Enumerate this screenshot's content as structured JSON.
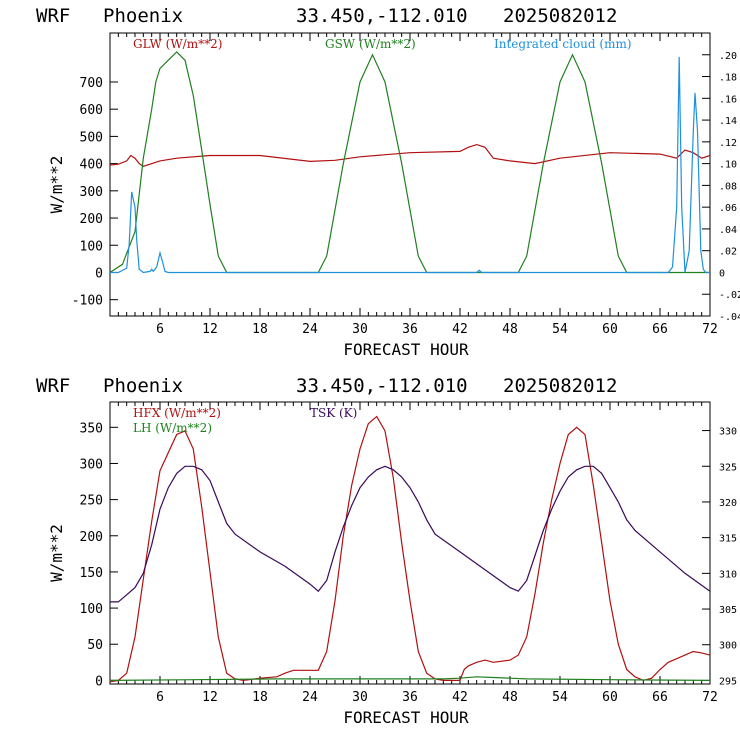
{
  "charts": [
    {
      "header": {
        "model": "WRF",
        "location": "Phoenix",
        "coords": "33.450,-112.010",
        "run": "2025082012"
      },
      "ylabel": "W/m**2",
      "xlabel": "FORECAST HOUR",
      "legend": [
        {
          "label": "GLW (W/m**2)",
          "color": "#b01010"
        },
        {
          "label": "GSW (W/m**2)",
          "color": "#208020"
        },
        {
          "label": "Integrated cloud (mm)",
          "color": "#1e90dd"
        }
      ]
    },
    {
      "header": {
        "model": "WRF",
        "location": "Phoenix",
        "coords": "33.450,-112.010",
        "run": "2025082012"
      },
      "ylabel": "W/m**2",
      "xlabel": "FORECAST HOUR",
      "legend": [
        {
          "label": "HFX (W/m**2)",
          "color": "#b01010"
        },
        {
          "label": "LH  (W/m**2)",
          "color": "#208020"
        },
        {
          "label": "TSK (K)",
          "color": "#3a0a5a"
        }
      ]
    }
  ],
  "chart_data": [
    {
      "type": "line",
      "xlim": [
        0,
        72
      ],
      "ylim": [
        -160,
        880
      ],
      "y2lim": [
        -0.04,
        0.22
      ],
      "xticks": [
        6,
        12,
        18,
        24,
        30,
        36,
        42,
        48,
        54,
        60,
        66,
        72
      ],
      "yticks": [
        -100,
        0,
        100,
        200,
        300,
        400,
        500,
        600,
        700
      ],
      "y2ticks": [
        -0.04,
        -0.02,
        0,
        0.02,
        0.04,
        0.06,
        0.08,
        0.1,
        0.12,
        0.14,
        0.16,
        0.18,
        0.2
      ],
      "y2ticklabels": [
        "-.04",
        "-.02",
        "0",
        ".02",
        ".04",
        ".06",
        ".08",
        ".10",
        ".12",
        ".14",
        ".16",
        ".18",
        ".20"
      ],
      "series": [
        {
          "name": "GLW (W/m**2)",
          "axis": "left",
          "color": "#b01010",
          "x": [
            0,
            1,
            2,
            2.5,
            3,
            3.5,
            4,
            6,
            8,
            12,
            18,
            24,
            27,
            30,
            36,
            42,
            43,
            44,
            45,
            46,
            48,
            51,
            54,
            60,
            66,
            68,
            69,
            70,
            71,
            72
          ],
          "y": [
            395,
            398,
            410,
            430,
            420,
            400,
            390,
            410,
            420,
            430,
            430,
            408,
            412,
            425,
            440,
            445,
            460,
            470,
            460,
            420,
            410,
            400,
            420,
            440,
            435,
            420,
            450,
            440,
            420,
            430
          ]
        },
        {
          "name": "GSW (W/m**2)",
          "axis": "left",
          "color": "#208020",
          "x": [
            0,
            1.5,
            3,
            4,
            5,
            5.5,
            6,
            7,
            8,
            9,
            10,
            11,
            12,
            13,
            14,
            25,
            26,
            28,
            30,
            31.5,
            33,
            35,
            37,
            38,
            49,
            50,
            52,
            54,
            55.5,
            57,
            59,
            61,
            62,
            72
          ],
          "y": [
            0,
            30,
            150,
            420,
            600,
            700,
            750,
            780,
            810,
            780,
            650,
            450,
            250,
            60,
            0,
            0,
            60,
            400,
            700,
            800,
            700,
            400,
            60,
            0,
            0,
            60,
            400,
            700,
            800,
            700,
            400,
            60,
            0,
            0
          ]
        },
        {
          "name": "Integrated cloud (mm)",
          "axis": "right",
          "color": "#1e90dd",
          "x": [
            0,
            1,
            2,
            2.3,
            2.6,
            3,
            3.2,
            3.5,
            4,
            4.8,
            5,
            5.2,
            5.6,
            6,
            6.3,
            6.6,
            7,
            44,
            44.3,
            44.6,
            66,
            67,
            67.5,
            68,
            68.3,
            68.6,
            69,
            69.5,
            70,
            70.2,
            70.5,
            70.9,
            71.2,
            71.5,
            72
          ],
          "y": [
            0,
            0,
            0.004,
            0.026,
            0.074,
            0.06,
            0.03,
            0.003,
            0,
            0.001,
            0.003,
            0.001,
            0.005,
            0.018,
            0.01,
            0.001,
            0,
            0,
            0.002,
            0,
            0,
            0,
            0.005,
            0.06,
            0.198,
            0.06,
            0,
            0.02,
            0.13,
            0.165,
            0.13,
            0.02,
            0.003,
            0,
            0
          ]
        }
      ]
    },
    {
      "type": "line",
      "xlim": [
        0,
        72
      ],
      "ylim": [
        -5,
        385
      ],
      "y2lim": [
        294.5,
        334
      ],
      "xticks": [
        6,
        12,
        18,
        24,
        30,
        36,
        42,
        48,
        54,
        60,
        66,
        72
      ],
      "yticks": [
        0,
        50,
        100,
        150,
        200,
        250,
        300,
        350
      ],
      "y2ticks": [
        295,
        300,
        305,
        310,
        315,
        320,
        325,
        330
      ],
      "series": [
        {
          "name": "HFX (W/m**2)",
          "axis": "left",
          "color": "#b01010",
          "x": [
            0,
            1,
            2,
            3,
            4,
            5,
            6,
            7,
            8,
            9,
            10,
            11,
            12,
            13,
            14,
            15,
            16,
            18,
            20,
            21,
            22,
            24,
            25,
            26,
            27,
            28,
            29,
            30,
            31,
            32,
            33,
            34,
            35,
            36,
            37,
            38,
            39,
            40,
            41,
            42,
            42.5,
            43,
            44,
            45,
            46,
            48,
            49,
            50,
            51,
            52,
            53,
            54,
            55,
            56,
            57,
            58,
            59,
            60,
            61,
            62,
            63,
            64,
            65,
            66,
            67,
            68,
            69,
            70,
            71,
            72
          ],
          "y": [
            -2,
            0,
            10,
            60,
            140,
            220,
            290,
            315,
            340,
            345,
            320,
            240,
            150,
            60,
            10,
            2,
            0,
            3,
            5,
            10,
            14,
            14,
            14,
            40,
            110,
            200,
            270,
            320,
            355,
            365,
            345,
            280,
            190,
            110,
            40,
            10,
            2,
            0,
            0,
            0,
            15,
            20,
            25,
            28,
            25,
            28,
            35,
            60,
            120,
            190,
            250,
            300,
            340,
            350,
            340,
            270,
            190,
            110,
            50,
            15,
            5,
            0,
            3,
            15,
            25,
            30,
            35,
            40,
            38,
            35
          ]
        },
        {
          "name": "LH  (W/m**2)",
          "axis": "left",
          "color": "#208020",
          "x": [
            0,
            10,
            20,
            30,
            40,
            42,
            44,
            46,
            48,
            50,
            60,
            72
          ],
          "y": [
            0,
            1,
            2,
            2,
            2,
            3,
            5,
            4,
            3,
            2,
            1,
            0
          ]
        },
        {
          "name": "TSK (K)",
          "axis": "right",
          "color": "#3a0a5a",
          "x": [
            0,
            1,
            2,
            3,
            4,
            5,
            6,
            7,
            8,
            9,
            10,
            11,
            12,
            13,
            14,
            15,
            18,
            21,
            24,
            25,
            26,
            27,
            28,
            29,
            30,
            31,
            32,
            33,
            34,
            35,
            36,
            37,
            38,
            39,
            42,
            45,
            48,
            49,
            50,
            51,
            52,
            53,
            54,
            55,
            56,
            57,
            58,
            59,
            60,
            61,
            62,
            63,
            66,
            69,
            72
          ],
          "y": [
            306,
            306,
            307,
            308,
            310,
            314,
            319,
            322,
            324,
            325,
            325,
            324.5,
            323,
            320,
            317,
            315.5,
            313,
            311,
            308.5,
            307.5,
            309,
            313,
            316.5,
            319.5,
            322,
            323.5,
            324.5,
            325,
            324.5,
            323.5,
            322,
            320,
            317.5,
            315.5,
            313,
            310.5,
            308,
            307.5,
            309,
            312.5,
            316,
            319,
            321.5,
            323.5,
            324.5,
            325,
            325,
            324,
            322,
            320,
            317.5,
            316,
            313,
            310,
            307.5
          ]
        }
      ]
    }
  ]
}
